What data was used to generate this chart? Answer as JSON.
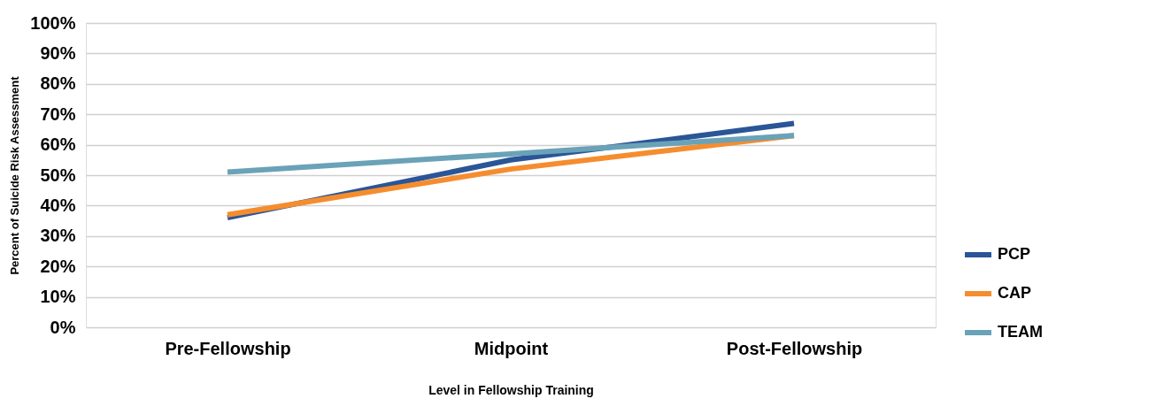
{
  "chart_data": {
    "type": "line",
    "xlabel": "Level in Fellowship Training",
    "ylabel": "Percent of Suicide Risk Assessment",
    "categories": [
      "Pre-Fellowship",
      "Midpoint",
      "Post-Fellowship"
    ],
    "series": [
      {
        "name": "PCP",
        "color": "#2a5597",
        "values": [
          36,
          55,
          67
        ]
      },
      {
        "name": "CAP",
        "color": "#f58d2f",
        "values": [
          37,
          52,
          63
        ]
      },
      {
        "name": "TEAM",
        "color": "#6aa2b8",
        "values": [
          51,
          57,
          63
        ]
      }
    ],
    "ylim": [
      0,
      100
    ],
    "yticks": [
      {
        "value": 0,
        "label": "0%"
      },
      {
        "value": 10,
        "label": "10%"
      },
      {
        "value": 20,
        "label": "20%"
      },
      {
        "value": 30,
        "label": "30%"
      },
      {
        "value": 40,
        "label": "40%"
      },
      {
        "value": 50,
        "label": "50%"
      },
      {
        "value": 60,
        "label": "60%"
      },
      {
        "value": 70,
        "label": "70%"
      },
      {
        "value": 80,
        "label": "80%"
      },
      {
        "value": 90,
        "label": "90%"
      },
      {
        "value": 100,
        "label": "100%"
      }
    ],
    "grid": "y",
    "legend": "right",
    "marker": "none",
    "line_style": "solid"
  }
}
